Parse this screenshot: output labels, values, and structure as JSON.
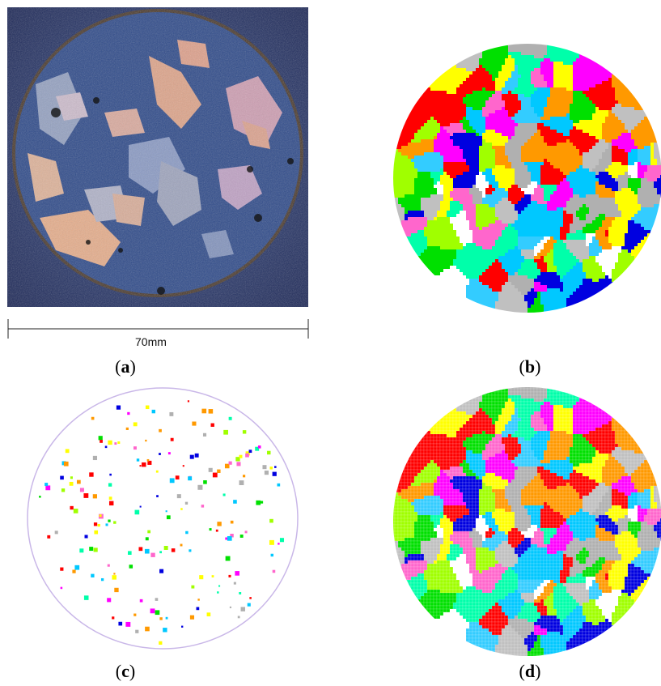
{
  "figure": {
    "panels": [
      {
        "id": "a",
        "label": "a",
        "description_kind": "photograph-of-cast-ingot-cross-section"
      },
      {
        "id": "b",
        "label": "b"
      },
      {
        "id": "c",
        "label": "c"
      },
      {
        "id": "d",
        "label": "d"
      }
    ],
    "scale_bar": {
      "text": "70mm"
    },
    "palette": [
      "#ff0000",
      "#00e000",
      "#ff00ff",
      "#ffff00",
      "#00c8ff",
      "#ff9900",
      "#b0b0b0",
      "#00ffaa",
      "#0000e0",
      "#a0ff00",
      "#ff66cc",
      "#ffffff",
      "#c0c0c0",
      "#33ccff"
    ]
  }
}
